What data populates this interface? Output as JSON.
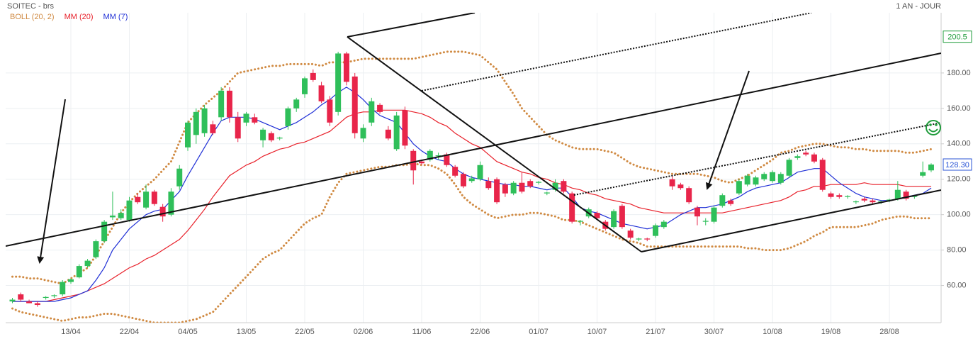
{
  "chart_data": {
    "type": "candlestick",
    "title": "SOITEC - brs",
    "subtitle": "1 AN - JOUR",
    "up_color": "#2fbf5a",
    "down_color": "#e8254a",
    "categories": [
      null,
      null,
      null,
      null,
      null,
      null,
      null,
      "13/04",
      null,
      null,
      null,
      null,
      null,
      null,
      "22/04",
      null,
      null,
      null,
      null,
      null,
      null,
      "04/05",
      null,
      null,
      null,
      null,
      null,
      null,
      "13/05",
      null,
      null,
      null,
      null,
      null,
      null,
      "22/05",
      null,
      null,
      null,
      null,
      null,
      null,
      "02/06",
      null,
      null,
      null,
      null,
      null,
      null,
      "11/06",
      null,
      null,
      null,
      null,
      null,
      null,
      "22/06",
      null,
      null,
      null,
      null,
      null,
      null,
      "01/07",
      null,
      null,
      null,
      null,
      null,
      null,
      "10/07",
      null,
      null,
      null,
      null,
      null,
      null,
      "21/07",
      null,
      null,
      null,
      null,
      null,
      null,
      "30/07",
      null,
      null,
      null,
      null,
      null,
      null,
      "10/08",
      null,
      null,
      null,
      null,
      null,
      null,
      "19/08",
      null,
      null,
      null,
      null,
      null,
      null,
      "28/08",
      null,
      null,
      null,
      null,
      null
    ],
    "ohlc": [
      [
        51,
        53,
        50,
        52
      ],
      [
        55,
        56,
        51,
        52
      ],
      [
        51,
        52,
        50,
        50
      ],
      [
        50,
        51,
        48,
        49
      ],
      [
        53,
        54,
        52,
        53.5
      ],
      [
        54,
        55,
        53,
        54.5
      ],
      [
        55,
        63,
        54,
        62
      ],
      [
        62,
        64,
        61,
        63.5
      ],
      [
        64.6,
        72,
        64,
        71
      ],
      [
        71,
        75,
        70,
        74
      ],
      [
        76,
        86,
        75,
        85
      ],
      [
        85,
        97,
        84,
        96
      ],
      [
        98.5,
        113,
        97,
        99.5
      ],
      [
        98,
        103,
        97,
        101
      ],
      [
        97,
        110,
        96,
        108
      ],
      [
        110,
        112,
        106,
        107
      ],
      [
        104,
        117,
        103,
        113
      ],
      [
        113,
        114,
        105,
        106
      ],
      [
        104.4,
        106,
        96,
        99
      ],
      [
        100,
        115,
        99,
        113
      ],
      [
        116,
        128,
        114,
        126
      ],
      [
        138,
        153,
        136,
        152
      ],
      [
        145,
        160,
        140,
        158
      ],
      [
        146,
        162,
        144,
        160
      ],
      [
        151,
        153,
        145,
        146
      ],
      [
        155,
        172,
        153,
        170
      ],
      [
        170,
        172,
        152,
        155
      ],
      [
        155,
        158,
        141,
        143
      ],
      [
        152,
        158,
        150,
        157
      ],
      [
        155,
        157,
        151,
        152
      ],
      [
        142,
        149,
        138,
        148
      ],
      [
        146,
        147,
        141,
        142
      ],
      [
        143,
        144,
        142,
        143.5
      ],
      [
        150,
        161,
        148,
        160
      ],
      [
        160,
        166,
        158,
        165
      ],
      [
        168,
        178,
        166,
        177
      ],
      [
        180,
        182,
        175,
        176
      ],
      [
        173,
        175,
        163,
        164
      ],
      [
        165,
        167,
        150,
        152
      ],
      [
        158,
        192,
        156,
        191
      ],
      [
        191,
        192,
        173,
        175
      ],
      [
        178,
        180,
        143,
        146
      ],
      [
        143,
        151,
        141,
        149
      ],
      [
        152,
        166,
        150,
        164
      ],
      [
        162,
        163,
        157,
        158
      ],
      [
        148,
        150,
        142,
        143
      ],
      [
        137,
        158,
        136,
        156
      ],
      [
        159,
        161,
        137,
        139
      ],
      [
        136,
        137,
        117,
        125
      ],
      [
        130,
        131,
        128,
        129
      ],
      [
        131,
        137,
        130,
        136
      ],
      [
        133,
        135,
        131,
        133.5
      ],
      [
        134,
        135,
        127,
        128
      ],
      [
        127,
        128,
        121,
        122
      ],
      [
        123,
        124,
        115,
        116
      ],
      [
        119,
        122,
        118,
        120.5
      ],
      [
        120,
        130,
        119,
        128
      ],
      [
        119,
        121,
        114,
        115
      ],
      [
        120,
        121,
        106,
        107
      ],
      [
        117,
        118,
        110,
        112
      ],
      [
        112,
        119,
        111,
        118
      ],
      [
        118,
        124,
        112,
        113
      ],
      [
        119,
        120,
        115,
        116
      ],
      [
        118,
        119,
        117,
        118.5
      ],
      [
        112,
        113,
        111,
        112.5
      ],
      [
        114,
        120,
        113,
        118
      ],
      [
        119,
        120,
        112,
        113
      ],
      [
        112,
        113,
        95,
        96
      ],
      [
        96,
        97,
        94,
        96.5
      ],
      [
        99,
        104,
        98,
        103
      ],
      [
        101,
        102,
        97,
        98
      ],
      [
        96,
        97,
        91,
        92
      ],
      [
        93,
        103,
        92,
        102
      ],
      [
        105,
        106,
        92,
        93
      ],
      [
        91,
        92,
        86,
        87
      ],
      [
        86,
        87,
        85,
        86.5
      ],
      [
        86.5,
        87,
        85,
        86
      ],
      [
        88,
        95,
        87,
        94
      ],
      [
        93,
        97,
        92,
        96
      ],
      [
        120,
        122,
        114,
        116
      ],
      [
        117,
        118,
        114,
        115
      ],
      [
        115,
        116,
        106,
        107
      ],
      [
        104,
        105,
        94,
        99
      ],
      [
        96,
        98,
        94,
        96.5
      ],
      [
        96,
        105,
        95,
        104
      ],
      [
        105,
        112,
        104,
        111
      ],
      [
        108,
        109,
        105,
        106
      ],
      [
        112,
        120,
        111,
        119
      ],
      [
        117,
        123,
        116,
        122
      ],
      [
        117,
        122,
        116,
        121
      ],
      [
        120,
        124,
        119,
        123
      ],
      [
        119,
        125,
        118,
        124
      ],
      [
        118,
        124,
        117,
        123
      ],
      [
        122,
        132,
        121,
        131
      ],
      [
        132,
        134,
        131,
        133
      ],
      [
        135,
        136,
        133,
        134
      ],
      [
        134,
        135,
        129,
        130
      ],
      [
        131,
        132,
        113,
        114
      ],
      [
        112,
        113,
        109,
        110
      ],
      [
        111,
        112,
        109,
        110
      ],
      [
        110,
        111,
        109,
        110.5
      ],
      [
        107,
        108,
        106,
        107.5
      ],
      [
        109,
        110,
        107,
        108
      ],
      [
        108,
        109,
        106,
        107
      ],
      [
        107,
        108,
        106,
        107.5
      ],
      [
        108,
        109,
        107,
        108.5
      ],
      [
        109,
        119,
        108,
        114
      ],
      [
        113,
        114,
        108,
        109
      ],
      [
        110,
        111,
        109,
        110.5
      ],
      [
        122,
        130,
        121,
        124
      ],
      [
        125,
        129,
        124,
        128.3
      ]
    ],
    "series": [
      {
        "name": "BOLL (20, 2)",
        "color": "#d08a42",
        "dotted": true,
        "upper": [
          65,
          65,
          64,
          64,
          63,
          62,
          61,
          64,
          67,
          70,
          77,
          85,
          93,
          101,
          107,
          112,
          116,
          120,
          125,
          130,
          141,
          152,
          157,
          162,
          166,
          170,
          175,
          180,
          181,
          182,
          183,
          184,
          184,
          185,
          185,
          185,
          185,
          184,
          186,
          186,
          186,
          187,
          188,
          188,
          188,
          188,
          188,
          188,
          188,
          189,
          190,
          191,
          192,
          192,
          192,
          191,
          190,
          186,
          182,
          175,
          168,
          160,
          155,
          150,
          145,
          142,
          140,
          138,
          137,
          137,
          137,
          136,
          135,
          132,
          129,
          127,
          126,
          125,
          124,
          123,
          123,
          123,
          123,
          122,
          121,
          119,
          118,
          120,
          122,
          125,
          128,
          131,
          135,
          136,
          138,
          139,
          140,
          140,
          139,
          138,
          138,
          137,
          137,
          136,
          136,
          136,
          136,
          135,
          135,
          136,
          137
        ],
        "lower": [
          47,
          45,
          44,
          43,
          42,
          41,
          40,
          41,
          42,
          42,
          43,
          44,
          44,
          43,
          42,
          41,
          40,
          39,
          39,
          39,
          39,
          40,
          41,
          43,
          45,
          50,
          55,
          60,
          65,
          70,
          75,
          78,
          80,
          85,
          90,
          95,
          98,
          100,
          110,
          118,
          123,
          124,
          125,
          126,
          127,
          127,
          128,
          128,
          129,
          128,
          128,
          126,
          123,
          117,
          110,
          106,
          103,
          100,
          98,
          99,
          100,
          100,
          101,
          101,
          100,
          99,
          97,
          97,
          96,
          94,
          92,
          90,
          88,
          86,
          85,
          84,
          82,
          82,
          82,
          82,
          82,
          82,
          82,
          82,
          82,
          82,
          82,
          82,
          81,
          81,
          80,
          80,
          80,
          81,
          83,
          85,
          88,
          90,
          93,
          93,
          93,
          93,
          94,
          95,
          97,
          98,
          99,
          99,
          98,
          98,
          98
        ]
      },
      {
        "name": "MM (20)",
        "color": "#e8202a",
        "values": [
          51,
          51,
          51,
          51,
          51,
          52,
          53,
          54,
          55,
          57,
          59,
          61,
          64,
          67,
          70,
          72,
          75,
          77,
          80,
          83,
          86,
          91,
          97,
          103,
          110,
          116,
          122,
          125,
          128,
          130,
          133,
          135,
          137,
          138,
          140,
          141,
          143,
          145,
          147,
          151,
          155,
          157,
          158,
          158,
          159,
          159,
          159,
          159,
          158,
          157,
          155,
          152,
          150,
          146,
          143,
          140,
          138,
          134,
          130,
          128,
          126,
          124,
          123,
          121,
          120,
          118,
          117,
          115,
          114,
          112,
          111,
          109,
          108,
          107,
          106,
          104,
          103,
          102,
          101,
          101,
          101,
          101,
          101,
          101,
          101,
          101,
          102,
          103,
          104,
          105,
          106,
          107,
          108,
          110,
          113,
          114,
          116,
          116,
          117,
          117,
          117,
          117,
          118,
          117,
          117,
          117,
          117,
          116,
          116,
          116,
          116
        ]
      },
      {
        "name": "MM (7)",
        "color": "#1f2fd6",
        "values": [
          51,
          51,
          51,
          51,
          51,
          51,
          52,
          53,
          55,
          57,
          63,
          70,
          80,
          86,
          92,
          96,
          100,
          102,
          103,
          108,
          113,
          122,
          130,
          138,
          146,
          153,
          155,
          155,
          155,
          154,
          152,
          150,
          148,
          150,
          152,
          155,
          158,
          162,
          165,
          169,
          172,
          169,
          165,
          160,
          156,
          154,
          152,
          146,
          140,
          136,
          133,
          131,
          130,
          126,
          123,
          121,
          120,
          119,
          118,
          117,
          117,
          116,
          116,
          115,
          114,
          115,
          115,
          110,
          104,
          102,
          101,
          99,
          97,
          95,
          94,
          93,
          92,
          93,
          94,
          97,
          100,
          102,
          104,
          104,
          105,
          106,
          108,
          110,
          113,
          115,
          116,
          117,
          118,
          121,
          124,
          125,
          126,
          126,
          122,
          118,
          115,
          112,
          110,
          109,
          108,
          108,
          109,
          110,
          111,
          112,
          115
        ]
      }
    ],
    "ylim": [
      39,
      214
    ],
    "yticks": [
      {
        "value": 60,
        "label": "60.00"
      },
      {
        "value": 80,
        "label": "80.00"
      },
      {
        "value": 100,
        "label": "100.00"
      },
      {
        "value": 120,
        "label": "120.00"
      },
      {
        "value": 140,
        "label": "140.00"
      },
      {
        "value": 160,
        "label": "160.00"
      },
      {
        "value": 180,
        "label": "180.00"
      }
    ],
    "grid": true,
    "levels": [
      200.5,
      {
        "value": 128.3,
        "label": "128.30"
      }
    ],
    "level_colors": [
      "#1e9b3a",
      "#2b55d6"
    ]
  }
}
